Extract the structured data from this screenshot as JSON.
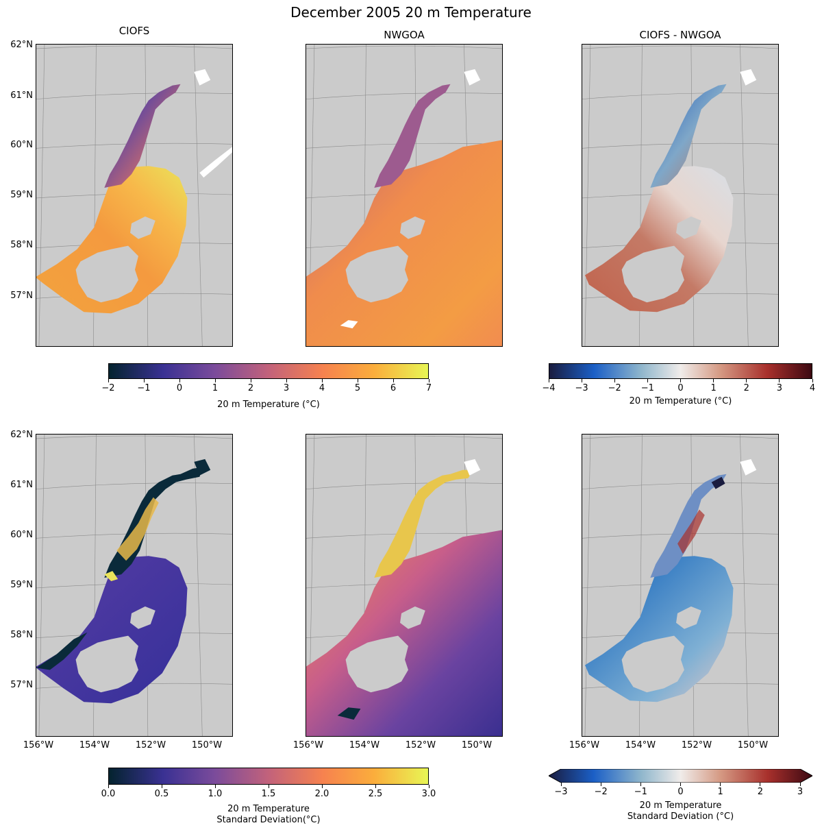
{
  "figure": {
    "title": "December 2005 20 m Temperature",
    "panel_titles": [
      "CIOFS",
      "NWGOA",
      "CIOFS - NWGOA"
    ]
  },
  "axes": {
    "lat_labels": [
      "62°N",
      "61°N",
      "60°N",
      "59°N",
      "58°N",
      "57°N"
    ],
    "lon_labels": [
      "156°W",
      "154°W",
      "152°W",
      "150°W"
    ]
  },
  "colorbars": {
    "temp": {
      "ticks": [
        "−2",
        "−1",
        "0",
        "1",
        "2",
        "3",
        "4",
        "5",
        "6",
        "7"
      ],
      "label": "20 m Temperature (°C)",
      "range": [
        -2,
        7
      ],
      "colormap": "thermal"
    },
    "temp_diff": {
      "ticks": [
        "−4",
        "−3",
        "−2",
        "−1",
        "0",
        "1",
        "2",
        "3",
        "4"
      ],
      "label": "20 m Temperature (°C)",
      "range": [
        -4,
        4
      ],
      "colormap": "balance"
    },
    "std": {
      "ticks": [
        "0.0",
        "0.5",
        "1.0",
        "1.5",
        "2.0",
        "2.5",
        "3.0"
      ],
      "label_line1": "20 m Temperature",
      "label_line2": "Standard Deviation(°C)",
      "range": [
        0,
        3
      ],
      "colormap": "thermal"
    },
    "std_diff": {
      "ticks": [
        "−3",
        "−2",
        "−1",
        "0",
        "1",
        "2",
        "3"
      ],
      "label_line1": "20 m Temperature",
      "label_line2": "Standard Deviation (°C)",
      "range": [
        -3,
        3
      ],
      "colormap": "balance",
      "extend": "both"
    }
  },
  "colors": {
    "land": "#cbcbcb",
    "thermal": [
      "#04232e",
      "#3a3193",
      "#7a4b9b",
      "#c2627b",
      "#f6824f",
      "#fbad3c",
      "#e8f655"
    ],
    "balance": [
      "#1a1c3f",
      "#1b5fc6",
      "#8fb6cc",
      "#f0ecea",
      "#d59a84",
      "#a8302c",
      "#3c0912"
    ]
  }
}
